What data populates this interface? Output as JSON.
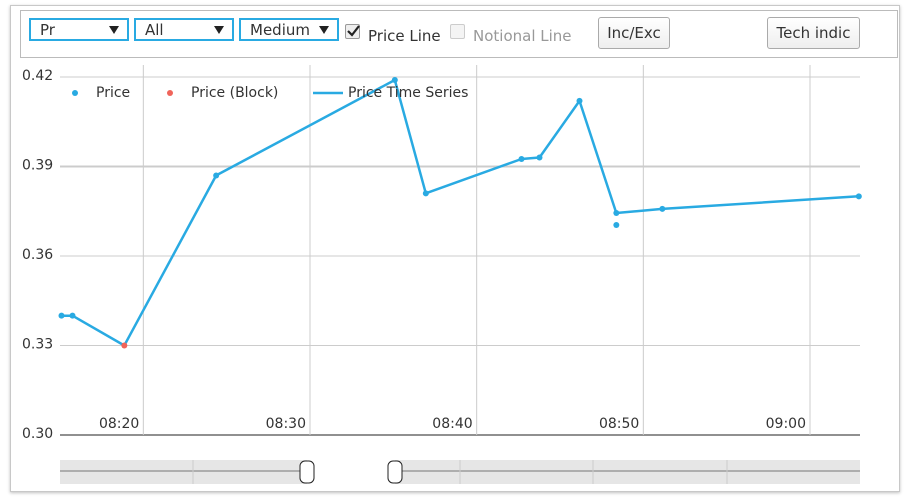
{
  "toolbar": {
    "selects": [
      "Pr",
      "All",
      "Medium"
    ],
    "checkboxes": [
      {
        "label": "Price Line",
        "checked": true
      },
      {
        "label": "Notional Line",
        "checked": false
      }
    ],
    "buttons": [
      "Inc/Exc",
      "Tech indic"
    ]
  },
  "chart_data": {
    "type": "line",
    "xlim": [
      495,
      543
    ],
    "xticks": [
      {
        "value": 500,
        "label": "08:20"
      },
      {
        "value": 510,
        "label": "08:30"
      },
      {
        "value": 520,
        "label": "08:40"
      },
      {
        "value": 530,
        "label": "08:50"
      },
      {
        "value": 540,
        "label": "09:00"
      }
    ],
    "ylim": [
      0.3,
      0.42
    ],
    "yticks": [
      {
        "value": 0.3,
        "label": "0.30"
      },
      0.33,
      0.36,
      0.39,
      0.42
    ],
    "grid": true,
    "legend": "top-left",
    "series": [
      {
        "name": "Price",
        "type": "scatter",
        "color": "#29aae2",
        "x": [
          495.09,
          495.75,
          504.37,
          515.09,
          516.95,
          522.69,
          523.77,
          526.17,
          528.38,
          528.38,
          531.14,
          542.93
        ],
        "values": [
          0.34,
          0.34,
          0.387,
          0.419,
          0.381,
          0.3925,
          0.393,
          0.412,
          0.3744,
          0.3704,
          0.3758,
          0.38
        ]
      },
      {
        "name": "Price (Block)",
        "type": "scatter",
        "color": "#f0645a",
        "x": [
          498.86
        ],
        "values": [
          0.33
        ]
      },
      {
        "name": "Price Time Series",
        "type": "line",
        "color": "#29aae2",
        "x": [
          495.09,
          495.75,
          498.86,
          504.37,
          515.09,
          516.95,
          522.69,
          523.77,
          526.17,
          528.38,
          531.14,
          542.93
        ],
        "values": [
          0.34,
          0.34,
          0.33,
          0.387,
          0.419,
          0.381,
          0.3925,
          0.393,
          0.412,
          0.3744,
          0.3758,
          0.38
        ]
      }
    ]
  }
}
